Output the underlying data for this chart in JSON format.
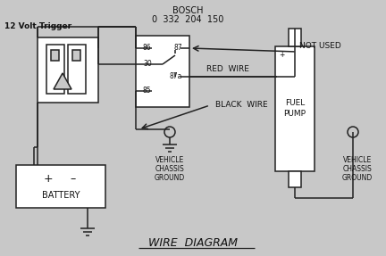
{
  "title": "WIRE  DIAGRAM",
  "bosch_label": "BOSCH",
  "bosch_model": "0  332  204  150",
  "trigger_label": "12 Volt Trigger",
  "not_used_label": "NOT USED",
  "red_wire_label": "RED  WIRE",
  "black_wire_label": "BLACK  WIRE",
  "vehicle_chassis_ground1": [
    "VEHICLE",
    "CHASSIS",
    "GROUND"
  ],
  "vehicle_chassis_ground2": [
    "VEHICLE",
    "CHASSIS",
    "GROUND"
  ],
  "fuel_pump_label": [
    "FUEL",
    "PUMP"
  ],
  "battery_label": "BATTERY",
  "battery_plus": "+",
  "battery_minus": "–",
  "bg_color": "#c8c8c8",
  "line_color": "#222222",
  "text_color": "#111111",
  "figsize": [
    4.32,
    2.87
  ],
  "dpi": 100
}
